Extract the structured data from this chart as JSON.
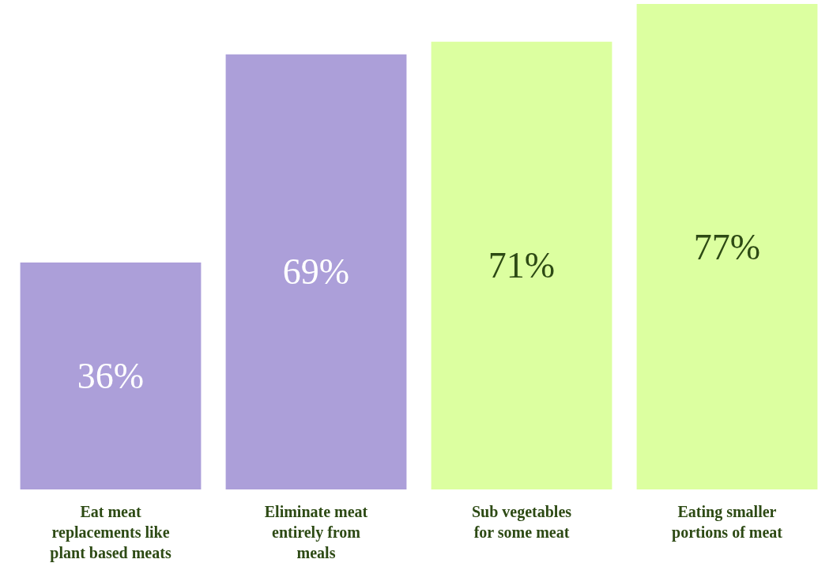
{
  "chart_data": {
    "type": "bar",
    "categories": [
      "Eat meat replacements like plant based meats",
      "Eliminate meat entirely from meals",
      "Sub vegetables for some meat",
      "Eating smaller portions of meat"
    ],
    "values": [
      36,
      69,
      71,
      77
    ],
    "colors": [
      "#ac9fd9",
      "#ac9fd9",
      "#dcffa0",
      "#dcffa0"
    ],
    "value_labels": [
      "36%",
      "69%",
      "71%",
      "77%"
    ],
    "grid": false,
    "legend": false
  }
}
